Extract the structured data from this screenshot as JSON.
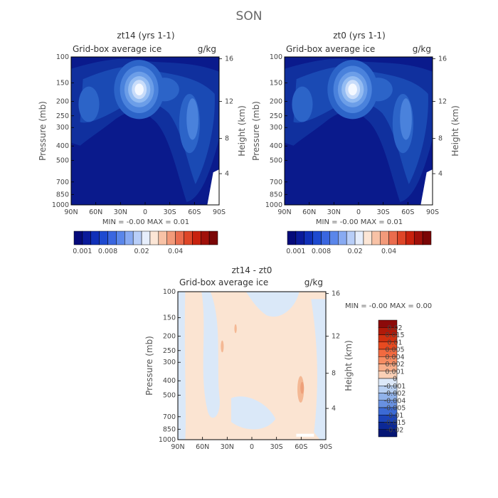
{
  "figure_title": "SON",
  "chart_data": [
    {
      "type": "heatmap",
      "title": "zt14 (yrs 1-1)",
      "field_label": "Grid-box average ice",
      "units": "g/kg",
      "ylabel": "Pressure (mb)",
      "y2label": "Height (km)",
      "x_ticks": [
        "90N",
        "60N",
        "30N",
        "0",
        "30S",
        "60S",
        "90S"
      ],
      "y_ticks": [
        "100",
        "150",
        "200",
        "250",
        "300",
        "400",
        "500",
        "700",
        "850",
        "1000"
      ],
      "y2_ticks": [
        "16",
        "12",
        "8",
        "4"
      ],
      "min_max_text": "MIN = -0.00 MAX = 0.01",
      "colorbar_labels": [
        "0.001",
        "0.008",
        "0.02",
        "0.04"
      ],
      "colorbar_colors": [
        "#050a7a",
        "#0a1a9a",
        "#1030b8",
        "#1e4ad0",
        "#3a66e0",
        "#5a86ea",
        "#88aaf2",
        "#b8cef8",
        "#e6eefc",
        "#fce6d6",
        "#f8c2a6",
        "#f29a7a",
        "#ea6c4e",
        "#de4628",
        "#c8220e",
        "#a0100a",
        "#7a0606"
      ],
      "field_colors": [
        "#0a1a8c",
        "#10309e",
        "#1a4ab4",
        "#2c64c8",
        "#4a82dc",
        "#6c9ee8",
        "#94bcf2",
        "#c8dcfa",
        "#f4f8ff"
      ]
    },
    {
      "type": "heatmap",
      "title": "zt0 (yrs 1-1)",
      "field_label": "Grid-box average ice",
      "units": "g/kg",
      "ylabel": "Pressure (mb)",
      "y2label": "Height (km)",
      "x_ticks": [
        "90N",
        "60N",
        "30N",
        "0",
        "30S",
        "60S",
        "90S"
      ],
      "y_ticks": [
        "100",
        "150",
        "200",
        "250",
        "300",
        "400",
        "500",
        "700",
        "850",
        "1000"
      ],
      "y2_ticks": [
        "16",
        "12",
        "8",
        "4"
      ],
      "min_max_text": "MIN = -0.00 MAX = 0.01",
      "colorbar_labels": [
        "0.001",
        "0.008",
        "0.02",
        "0.04"
      ]
    },
    {
      "type": "heatmap",
      "title": "zt14 - zt0",
      "field_label": "Grid-box average ice",
      "units": "g/kg",
      "ylabel": "Pressure (mb)",
      "y2label": "Height (km)",
      "x_ticks": [
        "90N",
        "60N",
        "30N",
        "0",
        "30S",
        "60S",
        "90S"
      ],
      "y_ticks": [
        "100",
        "150",
        "200",
        "250",
        "300",
        "400",
        "500",
        "700",
        "850",
        "1000"
      ],
      "y2_ticks": [
        "16",
        "12",
        "8",
        "4"
      ],
      "min_max_text": "MIN = -0.00 MAX = 0.00",
      "colorbar_labels": [
        "0.02",
        "0.015",
        "0.01",
        "0.005",
        "0.004",
        "0.002",
        "0.001",
        "0",
        "-0.001",
        "-0.002",
        "-0.004",
        "-0.005",
        "-0.01",
        "-0.015",
        "-0.02"
      ],
      "colorbar_colors": [
        "#8c0a0a",
        "#b01a0a",
        "#d03010",
        "#e84a20",
        "#f26a40",
        "#f68c62",
        "#f8ae8a",
        "#fad0b6",
        "#dce8f8",
        "#b8d0f2",
        "#90b2ea",
        "#6890e0",
        "#3c6ad4",
        "#1c44b8",
        "#0c2896",
        "#061674"
      ],
      "diff_background": "#fbe4d2",
      "diff_light_blue": "#dae8f8",
      "diff_orange": "#f4b894"
    }
  ]
}
